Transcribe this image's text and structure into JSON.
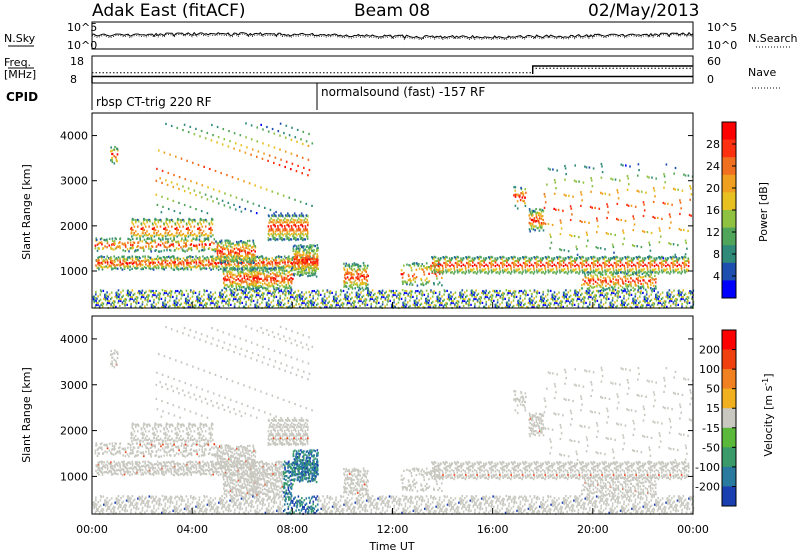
{
  "header": {
    "station": "Adak East (fitACF)",
    "beam": "Beam 08",
    "date": "02/May/2013"
  },
  "params": {
    "nsky_label": "N.Sky",
    "nsearch_label": "N.Search",
    "freq_label_line1": "Freq.",
    "freq_label_line2": "[MHz]",
    "nave_label": "Nave",
    "cpid_label": "CPID",
    "noise_ticks_left": [
      "10^5",
      "10^0"
    ],
    "noise_ticks_right": [
      "10^5",
      "10^0"
    ],
    "freq_ticks": [
      "18",
      "8"
    ],
    "nave_ticks": [
      "60",
      "0"
    ],
    "cpid_modes": [
      {
        "label": "rbsp CT-trig 220 RF",
        "start_hour": 0
      },
      {
        "label": "normalsound (fast) -157 RF",
        "start_hour": 9
      }
    ],
    "freq_mhz": [
      {
        "from_hour": 0,
        "to_hour": 24,
        "value": 10.4
      }
    ],
    "nave": [
      {
        "from_hour": 0,
        "to_hour": 17.6,
        "value": 23
      },
      {
        "from_hour": 17.6,
        "to_hour": 24,
        "value": 33
      }
    ]
  },
  "chart_data": [
    {
      "type": "heatmap",
      "name": "power",
      "xlabel": "",
      "ylabel": "Slant Range [km]",
      "yticks": [
        "1000",
        "2000",
        "3000",
        "4000"
      ],
      "xlim": [
        0,
        24
      ],
      "ylim": [
        180,
        4500
      ],
      "colorbar": {
        "label": "Power [dB]",
        "ticks": [
          "4",
          "8",
          "12",
          "16",
          "20",
          "24",
          "28"
        ],
        "colors": [
          "#0000ff",
          "#1d4fb0",
          "#2f8a7a",
          "#4fa55a",
          "#8fc240",
          "#e8c020",
          "#f0a020",
          "#f07020",
          "#ff3010",
          "#ff0000"
        ]
      }
    },
    {
      "type": "heatmap",
      "name": "velocity",
      "xlabel": "Time UT",
      "ylabel": "Slant Range [km]",
      "yticks": [
        "1000",
        "2000",
        "3000",
        "4000"
      ],
      "xticks": [
        "00:00",
        "04:00",
        "08:00",
        "12:00",
        "16:00",
        "20:00",
        "00:00"
      ],
      "xlim": [
        0,
        24
      ],
      "ylim": [
        180,
        4500
      ],
      "colorbar": {
        "label": "Velocity [m s",
        "label_exp": "-1",
        "label_close": "]",
        "ticks": [
          "200",
          "100",
          "50",
          "15",
          "-15",
          "-50",
          "-100",
          "-200"
        ],
        "colors": [
          "#1a3fb0",
          "#2a7aa0",
          "#3a9a6a",
          "#5ab83a",
          "#c8c8c0",
          "#f0b020",
          "#f08020",
          "#f04010",
          "#ff0000"
        ]
      }
    }
  ]
}
